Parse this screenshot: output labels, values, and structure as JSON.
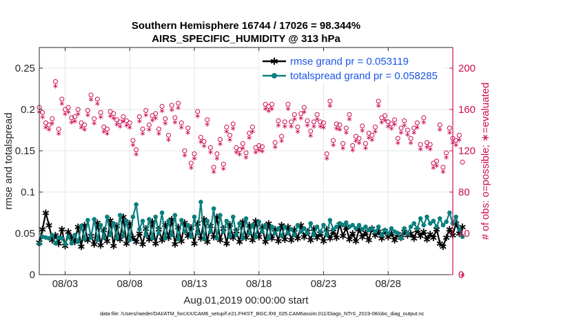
{
  "chart_data": {
    "type": "line",
    "title": "Southern Hemisphere 16744 / 17026 = 98.344%",
    "subtitle": "AIRS_SPECIFIC_HUMIDITY @ 313 hPa",
    "xlabel": "Aug.01,2019 00:00:00 start",
    "ylabel": "rmse and totalspread",
    "ylabel_right": "# of obs: o=possible; ∗=evaluated",
    "footer": "data file: /Users/raeder/DAI/ATM_forcXX/CAM6_setup/f.e21.FHIST_BGC.f09_025.CAM6assim.011/Diags_NTrS_2019-08/obs_diag_output.nc",
    "x_tick_labels": [
      "08/03",
      "08/08",
      "08/13",
      "08/18",
      "08/23",
      "08/28"
    ],
    "x_tick_days": [
      3,
      8,
      13,
      18,
      23,
      28
    ],
    "xlim": [
      1,
      33
    ],
    "ylim": [
      0,
      0.275
    ],
    "y_ticks": [
      0,
      0.05,
      0.1,
      0.15,
      0.2,
      0.25
    ],
    "y_tick_labels": [
      "0",
      "0.05",
      "0.1",
      "0.15",
      "0.2",
      "0.25"
    ],
    "ylim_right": [
      0,
      220
    ],
    "y_ticks_right": [
      0,
      40,
      80,
      120,
      160,
      200
    ],
    "y_tick_labels_right": [
      "0",
      "40",
      "80",
      "120",
      "160",
      "200"
    ],
    "grid": true,
    "legend_position": "top-right",
    "x_start": 1.0,
    "x_step": 0.25,
    "series": [
      {
        "name": "rmse grand pr = 0.053119",
        "axis": "left",
        "color": "#000000",
        "marker": "asterisk",
        "values": [
          0.039,
          0.055,
          0.075,
          0.06,
          0.042,
          0.048,
          0.038,
          0.055,
          0.035,
          0.052,
          0.045,
          0.04,
          0.058,
          0.034,
          0.06,
          0.042,
          0.047,
          0.037,
          0.063,
          0.036,
          0.054,
          0.041,
          0.066,
          0.035,
          0.059,
          0.043,
          0.07,
          0.038,
          0.062,
          0.045,
          0.04,
          0.05,
          0.037,
          0.056,
          0.043,
          0.064,
          0.038,
          0.055,
          0.042,
          0.061,
          0.045,
          0.067,
          0.037,
          0.058,
          0.041,
          0.063,
          0.047,
          0.057,
          0.038,
          0.062,
          0.044,
          0.067,
          0.04,
          0.059,
          0.046,
          0.07,
          0.042,
          0.056,
          0.038,
          0.061,
          0.045,
          0.053,
          0.04,
          0.064,
          0.045,
          0.06,
          0.042,
          0.065,
          0.046,
          0.058,
          0.04,
          0.062,
          0.044,
          0.055,
          0.041,
          0.06,
          0.043,
          0.058,
          0.042,
          0.055,
          0.044,
          0.06,
          0.046,
          0.052,
          0.042,
          0.056,
          0.045,
          0.05,
          0.041,
          0.055,
          0.044,
          0.052,
          0.045,
          0.061,
          0.047,
          0.057,
          0.043,
          0.05,
          0.041,
          0.055,
          0.046,
          0.051,
          0.042,
          0.056,
          0.048,
          0.052,
          0.044,
          0.053,
          0.046,
          0.05,
          0.042,
          0.049,
          0.045,
          0.052,
          0.048,
          0.05,
          0.044,
          0.054,
          0.047,
          0.052,
          0.043,
          0.049,
          0.045,
          0.055,
          0.038,
          0.034,
          0.045,
          0.055,
          0.048,
          0.062,
          0.05,
          0.058
        ]
      },
      {
        "name": "totalspread grand pr = 0.058285",
        "axis": "left",
        "color": "#0b7f7f",
        "marker": "circle",
        "values": [
          0.037,
          0.046,
          0.045,
          0.044,
          0.048,
          0.038,
          0.045,
          0.044,
          0.037,
          0.046,
          0.038,
          0.048,
          0.04,
          0.059,
          0.043,
          0.066,
          0.045,
          0.067,
          0.042,
          0.06,
          0.045,
          0.07,
          0.048,
          0.062,
          0.044,
          0.072,
          0.047,
          0.065,
          0.042,
          0.07,
          0.085,
          0.055,
          0.065,
          0.048,
          0.067,
          0.044,
          0.07,
          0.05,
          0.075,
          0.044,
          0.065,
          0.048,
          0.072,
          0.043,
          0.066,
          0.052,
          0.06,
          0.046,
          0.07,
          0.05,
          0.088,
          0.043,
          0.065,
          0.052,
          0.08,
          0.044,
          0.072,
          0.052,
          0.065,
          0.046,
          0.07,
          0.048,
          0.062,
          0.044,
          0.068,
          0.05,
          0.06,
          0.046,
          0.064,
          0.052,
          0.06,
          0.044,
          0.058,
          0.05,
          0.056,
          0.047,
          0.058,
          0.05,
          0.055,
          0.048,
          0.06,
          0.052,
          0.056,
          0.05,
          0.062,
          0.048,
          0.058,
          0.052,
          0.06,
          0.048,
          0.066,
          0.055,
          0.058,
          0.062,
          0.06,
          0.063,
          0.058,
          0.06,
          0.056,
          0.06,
          0.055,
          0.058,
          0.054,
          0.056,
          0.052,
          0.058,
          0.048,
          0.054,
          0.05,
          0.056,
          0.052,
          0.05,
          0.044,
          0.056,
          0.05,
          0.058,
          0.062,
          0.056,
          0.068,
          0.06,
          0.07,
          0.062,
          0.065,
          0.058,
          0.068,
          0.06,
          0.064,
          0.075,
          0.062,
          0.07,
          0.055,
          0.046
        ]
      },
      {
        "name": "obs possible",
        "axis": "right",
        "color": "#cc0a52",
        "marker": "o",
        "values": [
          162,
          157,
          147,
          145,
          151,
          187,
          141,
          170,
          160,
          162,
          152,
          153,
          160,
          147,
          145,
          159,
          174,
          151,
          170,
          157,
          143,
          141,
          158,
          156,
          150,
          148,
          153,
          149,
          147,
          130,
          121,
          153,
          141,
          159,
          145,
          154,
          156,
          141,
          163,
          151,
          135,
          164,
          152,
          166,
          147,
          120,
          142,
          108,
          117,
          158,
          133,
          129,
          150,
          123,
          104,
          117,
          131,
          107,
          143,
          135,
          146,
          123,
          121,
          127,
          118,
          137,
          143,
          123,
          125,
          124,
          165,
          163,
          165,
          128,
          149,
          134,
          148,
          165,
          148,
          155,
          143,
          156,
          162,
          149,
          139,
          148,
          155,
          148,
          147,
          117,
          168,
          130,
          146,
          145,
          127,
          142,
          155,
          125,
          134,
          132,
          144,
          127,
          137,
          135,
          143,
          168,
          152,
          154,
          148,
          146,
          150,
          132,
          142,
          149,
          140,
          132,
          142,
          147,
          126,
          152,
          128,
          126,
          108,
          110,
          145,
          104,
          118,
          142,
          132,
          130,
          135,
          109
        ]
      },
      {
        "name": "obs evaluated",
        "axis": "right",
        "color": "#cc0a52",
        "marker": "asterisk",
        "values": [
          158,
          153,
          143,
          141,
          147,
          183,
          137,
          166,
          156,
          158,
          148,
          149,
          156,
          143,
          141,
          155,
          170,
          147,
          166,
          153,
          139,
          137,
          154,
          152,
          146,
          144,
          149,
          145,
          143,
          126,
          117,
          149,
          137,
          155,
          141,
          150,
          152,
          137,
          159,
          147,
          131,
          160,
          148,
          162,
          143,
          116,
          138,
          104,
          113,
          154,
          129,
          125,
          146,
          119,
          100,
          113,
          127,
          103,
          139,
          131,
          142,
          119,
          117,
          123,
          114,
          133,
          139,
          119,
          121,
          120,
          161,
          159,
          161,
          124,
          145,
          130,
          144,
          161,
          144,
          151,
          139,
          152,
          158,
          145,
          135,
          144,
          151,
          144,
          143,
          113,
          164,
          126,
          142,
          141,
          123,
          138,
          151,
          121,
          130,
          128,
          140,
          123,
          133,
          131,
          139,
          164,
          148,
          150,
          144,
          142,
          146,
          128,
          138,
          145,
          136,
          128,
          138,
          143,
          122,
          148,
          124,
          122,
          104,
          106,
          141,
          100,
          114,
          138,
          128,
          126,
          131,
          0
        ]
      }
    ]
  }
}
